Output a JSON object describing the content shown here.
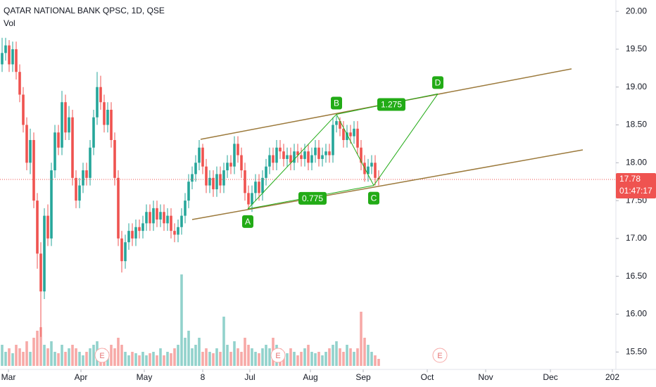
{
  "chart_data": {
    "type": "candlestick",
    "title": "QATAR NATIONAL BANK QPSC, 1D, QSE",
    "subtitle": "Vol",
    "up_color": "#26a69a",
    "down_color": "#ef5350",
    "ylim": [
      15.27,
      20.15
    ],
    "yticks": [
      {
        "value": 20,
        "label": "20.00"
      },
      {
        "value": 19.5,
        "label": "19.50"
      },
      {
        "value": 19,
        "label": "19.00"
      },
      {
        "value": 18.5,
        "label": "18.50"
      },
      {
        "value": 18,
        "label": "18.00"
      },
      {
        "value": 17.5,
        "label": "17.50"
      },
      {
        "value": 17,
        "label": "17.00"
      },
      {
        "value": 16.5,
        "label": "16.50"
      },
      {
        "value": 16,
        "label": "16.00"
      },
      {
        "value": 15.5,
        "label": "15.50"
      }
    ],
    "xlim": [
      -0.6,
      174.4
    ],
    "xticks": [
      {
        "value": 1.8,
        "label": "Mar"
      },
      {
        "value": 22.4,
        "label": "Apr"
      },
      {
        "value": 40.4,
        "label": "May"
      },
      {
        "value": 57,
        "label": "8"
      },
      {
        "value": 70.4,
        "label": "Jul"
      },
      {
        "value": 87.6,
        "label": "Aug"
      },
      {
        "value": 102.6,
        "label": "Sep"
      },
      {
        "value": 120.8,
        "label": "Oct"
      },
      {
        "value": 137.4,
        "label": "Nov"
      },
      {
        "value": 155.8,
        "label": "Dec"
      },
      {
        "value": 173.4,
        "label": "202"
      }
    ],
    "open": [
      19.3,
      19.45,
      19.55,
      19.3,
      19.5,
      19.2,
      18.9,
      18.5,
      18.0,
      18.3,
      17.5,
      16.8,
      16.3,
      17.3,
      17.0,
      17.9,
      18.4,
      18.2,
      18.8,
      18.4,
      18.6,
      17.8,
      17.5,
      17.7,
      17.9,
      17.8,
      18.2,
      18.6,
      19.0,
      18.8,
      18.5,
      18.7,
      18.3,
      17.8,
      17.0,
      16.7,
      16.95,
      17.1,
      17.0,
      17.15,
      17.1,
      17.2,
      17.35,
      17.2,
      17.4,
      17.25,
      17.35,
      17.2,
      17.3,
      17.1,
      17.05,
      17.15,
      17.3,
      17.5,
      17.75,
      17.85,
      18.0,
      18.2,
      17.95,
      17.7,
      17.8,
      17.65,
      17.85,
      17.7,
      17.9,
      18.0,
      17.95,
      18.25,
      18.1,
      17.9,
      17.6,
      17.45,
      17.6,
      17.75,
      17.6,
      17.8,
      17.95,
      18.1,
      18.0,
      18.2,
      18.15,
      18.05,
      18.1,
      18.0,
      18.15,
      18.1,
      18.05,
      18.15,
      18.0,
      18.1,
      18.2,
      18.05,
      18.1,
      18.15,
      18.1,
      18.5,
      18.55,
      18.45,
      18.3,
      18.4,
      18.35,
      18.45,
      18.2,
      18.0,
      17.85,
      17.95,
      18.0,
      17.8
    ],
    "high": [
      19.65,
      19.65,
      19.62,
      19.6,
      19.6,
      19.3,
      19.0,
      18.6,
      18.45,
      18.4,
      17.6,
      16.95,
      17.4,
      17.45,
      18.0,
      18.5,
      18.5,
      18.95,
      18.9,
      18.75,
      18.7,
      17.9,
      17.8,
      18.0,
      18.0,
      18.3,
      18.7,
      19.2,
      19.15,
      18.9,
      18.8,
      18.8,
      18.4,
      17.9,
      17.1,
      17.05,
      17.2,
      17.2,
      17.25,
      17.25,
      17.3,
      17.45,
      17.45,
      17.5,
      17.5,
      17.45,
      17.45,
      17.4,
      17.4,
      17.2,
      17.25,
      17.4,
      17.6,
      17.85,
      17.95,
      18.1,
      18.3,
      18.25,
      18.05,
      17.9,
      17.9,
      17.95,
      17.95,
      18.0,
      18.1,
      18.1,
      18.35,
      18.35,
      18.2,
      18.0,
      17.7,
      17.7,
      17.85,
      17.85,
      17.9,
      18.05,
      18.2,
      18.2,
      18.3,
      18.3,
      18.25,
      18.2,
      18.2,
      18.25,
      18.25,
      18.2,
      18.25,
      18.25,
      18.2,
      18.3,
      18.3,
      18.2,
      18.25,
      18.25,
      18.6,
      18.62,
      18.6,
      18.55,
      18.5,
      18.5,
      18.55,
      18.55,
      18.3,
      18.1,
      18.05,
      18.1,
      18.1,
      17.9
    ],
    "low": [
      19.2,
      19.35,
      19.2,
      19.2,
      19.1,
      18.8,
      18.4,
      17.9,
      17.85,
      17.4,
      16.6,
      15.7,
      16.2,
      16.9,
      16.9,
      17.8,
      18.1,
      18.1,
      18.3,
      18.3,
      17.7,
      17.4,
      17.4,
      17.6,
      17.7,
      17.7,
      18.1,
      18.5,
      18.7,
      18.4,
      18.4,
      18.2,
      17.7,
      16.9,
      16.55,
      16.6,
      16.85,
      16.9,
      16.9,
      17.0,
      17.0,
      17.1,
      17.1,
      17.1,
      17.15,
      17.15,
      17.1,
      17.1,
      17.0,
      16.95,
      16.95,
      17.05,
      17.2,
      17.4,
      17.65,
      17.75,
      17.9,
      17.85,
      17.6,
      17.6,
      17.55,
      17.55,
      17.6,
      17.6,
      17.8,
      17.85,
      17.85,
      18.0,
      17.8,
      17.5,
      17.38,
      17.35,
      17.5,
      17.5,
      17.5,
      17.7,
      17.85,
      17.9,
      17.9,
      18.05,
      17.95,
      17.95,
      17.9,
      17.9,
      18.0,
      17.95,
      17.95,
      17.9,
      17.9,
      18.0,
      17.95,
      17.95,
      18.0,
      18.0,
      18.0,
      18.4,
      18.35,
      18.2,
      18.2,
      18.25,
      18.25,
      18.1,
      17.9,
      17.75,
      17.75,
      17.85,
      17.7,
      17.7
    ],
    "close": [
      19.45,
      19.55,
      19.3,
      19.5,
      19.2,
      18.9,
      18.5,
      18.0,
      18.3,
      17.5,
      16.8,
      16.3,
      17.3,
      17.0,
      17.9,
      18.4,
      18.2,
      18.8,
      18.4,
      18.6,
      17.8,
      17.5,
      17.7,
      17.9,
      17.8,
      18.2,
      18.6,
      19.0,
      18.8,
      18.5,
      18.7,
      18.3,
      17.8,
      17.0,
      16.7,
      16.95,
      17.1,
      17.0,
      17.15,
      17.1,
      17.2,
      17.35,
      17.2,
      17.4,
      17.25,
      17.35,
      17.2,
      17.3,
      17.1,
      17.05,
      17.15,
      17.3,
      17.5,
      17.75,
      17.85,
      18.0,
      18.2,
      17.95,
      17.7,
      17.8,
      17.65,
      17.85,
      17.7,
      17.9,
      18.0,
      17.95,
      18.25,
      18.1,
      17.9,
      17.6,
      17.45,
      17.6,
      17.75,
      17.6,
      17.8,
      17.95,
      18.1,
      18.0,
      18.2,
      18.15,
      18.05,
      18.1,
      18.0,
      18.15,
      18.1,
      18.05,
      18.15,
      18.0,
      18.1,
      18.2,
      18.05,
      18.1,
      18.15,
      18.1,
      18.5,
      18.55,
      18.45,
      18.3,
      18.4,
      18.35,
      18.45,
      18.2,
      18.0,
      17.85,
      17.95,
      18.0,
      17.8,
      17.78
    ],
    "volume": [
      3,
      2,
      2.5,
      1.8,
      3,
      2.5,
      2,
      3.5,
      2,
      4,
      5,
      5.5,
      3,
      2.5,
      3.5,
      2,
      1.8,
      3,
      2,
      2.5,
      3,
      2.5,
      2,
      1.5,
      2,
      2.5,
      3,
      3.5,
      2,
      2.5,
      2,
      3,
      2.5,
      4,
      3,
      2,
      1.5,
      2,
      1.8,
      1.5,
      2,
      1.5,
      1.8,
      2,
      1.5,
      2.5,
      1.5,
      2,
      1.8,
      2.5,
      3,
      13,
      4,
      5,
      2.5,
      3,
      4,
      2,
      2.5,
      2,
      1.8,
      2.5,
      2,
      7,
      3,
      2,
      3.5,
      2.5,
      2,
      4,
      3,
      2.5,
      2,
      1.8,
      2.5,
      3,
      2.5,
      4,
      3,
      2.5,
      2,
      1.8,
      2.5,
      2,
      1.5,
      2,
      2.5,
      3,
      2,
      1.8,
      2,
      1.5,
      2,
      2.5,
      3,
      3.5,
      2.5,
      2,
      3,
      2.5,
      2,
      2.5,
      7.7,
      4,
      3,
      2,
      1.5,
      1
    ],
    "vlim": [
      0,
      25
    ],
    "last_price": {
      "value": 17.78,
      "label": "17.78"
    },
    "countdown": "01:47:17",
    "channel_color": "#9c7a3c",
    "channel": [
      [
        [
          56.4,
          18.31
        ],
        [
          161.8,
          19.24
        ]
      ],
      [
        [
          54,
          17.25
        ],
        [
          165,
          18.17
        ]
      ]
    ],
    "pattern_color": "#22ab16",
    "pattern_points": [
      {
        "label": "A",
        "x": 69.8,
        "y": 17.39,
        "position": "below"
      },
      {
        "label": "B",
        "x": 95,
        "y": 18.64,
        "position": "above"
      },
      {
        "label": "C",
        "x": 105.6,
        "y": 17.7,
        "position": "below"
      },
      {
        "label": "D",
        "x": 123.8,
        "y": 18.91,
        "position": "above"
      }
    ],
    "pattern_ratios": [
      {
        "label": "0.775",
        "x": 88.2,
        "y": 17.53
      },
      {
        "label": "1.275",
        "x": 110.6,
        "y": 18.77
      }
    ],
    "earnings": [
      {
        "label": "E",
        "x": 28.4
      },
      {
        "label": "E",
        "x": 78.4
      },
      {
        "label": "E",
        "x": 124.4
      }
    ]
  }
}
